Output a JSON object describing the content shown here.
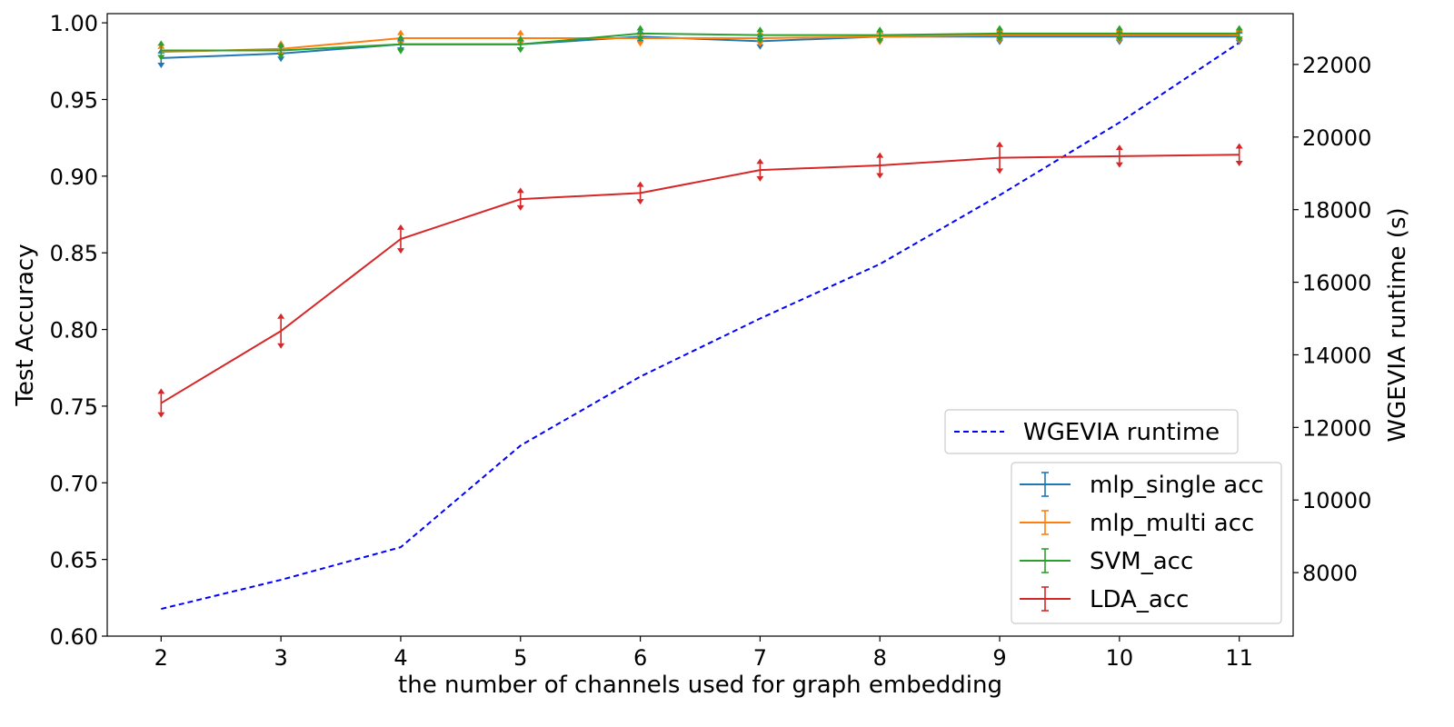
{
  "chart_data": {
    "type": "line",
    "x": [
      2,
      3,
      4,
      5,
      6,
      7,
      8,
      9,
      10,
      11
    ],
    "xlabel": "the number of channels used for graph embedding",
    "ylabel": "Test Accuracy",
    "y2label": "WGEVIA runtime (s)",
    "xticks": [
      "2",
      "3",
      "4",
      "5",
      "6",
      "7",
      "8",
      "9",
      "10",
      "11"
    ],
    "yticks": [
      "0.60",
      "0.65",
      "0.70",
      "0.75",
      "0.80",
      "0.85",
      "0.90",
      "0.95",
      "1.00"
    ],
    "y2ticks": [
      "8000",
      "10000",
      "12000",
      "14000",
      "16000",
      "18000",
      "20000",
      "22000"
    ],
    "xlim": [
      1.55,
      11.45
    ],
    "ylim": [
      0.6,
      1.006
    ],
    "y2lim": [
      6250,
      23400
    ],
    "y2_color": "#0000ff",
    "legend_runtime_placement": "lower-right",
    "legend_accuracy_placement": "lower-right",
    "series": [
      {
        "name": "mlp_single acc",
        "color": "#1f77b4",
        "axis": "left",
        "values": [
          0.977,
          0.98,
          0.986,
          0.986,
          0.991,
          0.988,
          0.991,
          0.991,
          0.991,
          0.991
        ],
        "err": [
          0.003,
          0.002,
          0.002,
          0.002,
          0.002,
          0.002,
          0.002,
          0.002,
          0.002,
          0.002
        ]
      },
      {
        "name": "mlp_multi acc",
        "color": "#ff7f0e",
        "axis": "left",
        "values": [
          0.981,
          0.983,
          0.99,
          0.99,
          0.99,
          0.99,
          0.991,
          0.992,
          0.992,
          0.992
        ],
        "err": [
          0.002,
          0.002,
          0.002,
          0.002,
          0.002,
          0.002,
          0.002,
          0.002,
          0.002,
          0.002
        ]
      },
      {
        "name": "SVM_acc",
        "color": "#2ca02c",
        "axis": "left",
        "values": [
          0.982,
          0.982,
          0.986,
          0.986,
          0.993,
          0.992,
          0.992,
          0.993,
          0.993,
          0.993
        ],
        "err": [
          0.003,
          0.002,
          0.003,
          0.002,
          0.002,
          0.002,
          0.002,
          0.002,
          0.002,
          0.002
        ]
      },
      {
        "name": "LDA_acc",
        "color": "#d62728",
        "axis": "left",
        "values": [
          0.752,
          0.799,
          0.859,
          0.885,
          0.889,
          0.904,
          0.907,
          0.912,
          0.913,
          0.914
        ],
        "err": [
          0.006,
          0.008,
          0.006,
          0.004,
          0.004,
          0.004,
          0.005,
          0.007,
          0.004,
          0.004
        ]
      },
      {
        "name": "WGEVIA runtime",
        "color": "#0000ff",
        "axis": "right",
        "dashed": true,
        "values": [
          7000,
          7800,
          8700,
          11500,
          13400,
          15000,
          16500,
          18400,
          20400,
          22600
        ]
      }
    ]
  }
}
